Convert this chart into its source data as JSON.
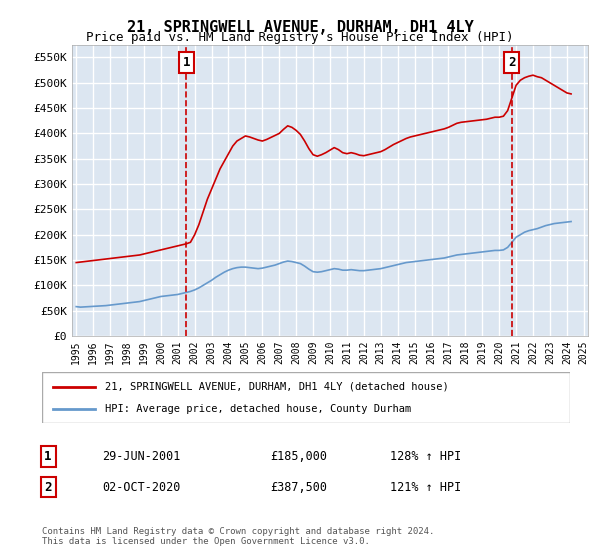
{
  "title": "21, SPRINGWELL AVENUE, DURHAM, DH1 4LY",
  "subtitle": "Price paid vs. HM Land Registry's House Price Index (HPI)",
  "ylim": [
    0,
    575000
  ],
  "yticks": [
    0,
    50000,
    100000,
    150000,
    200000,
    250000,
    300000,
    350000,
    400000,
    450000,
    500000,
    550000
  ],
  "ytick_labels": [
    "£0",
    "£50K",
    "£100K",
    "£150K",
    "£200K",
    "£250K",
    "£300K",
    "£350K",
    "£400K",
    "£450K",
    "£500K",
    "£550K"
  ],
  "xlabel": "",
  "background_color": "#dce6f1",
  "plot_bg": "#dce6f1",
  "grid_color": "#ffffff",
  "red_color": "#cc0000",
  "blue_color": "#6699cc",
  "legend_label_red": "21, SPRINGWELL AVENUE, DURHAM, DH1 4LY (detached house)",
  "legend_label_blue": "HPI: Average price, detached house, County Durham",
  "marker1_date_idx": 6.5,
  "marker1_label": "1",
  "marker1_date": "29-JUN-2001",
  "marker1_price": "£185,000",
  "marker1_hpi": "128% ↑ HPI",
  "marker2_date_idx": 25.5,
  "marker2_label": "2",
  "marker2_date": "02-OCT-2020",
  "marker2_price": "£387,500",
  "marker2_hpi": "121% ↑ HPI",
  "footer": "Contains HM Land Registry data © Crown copyright and database right 2024.\nThis data is licensed under the Open Government Licence v3.0.",
  "hpi_data": {
    "years": [
      1995.0,
      1995.25,
      1995.5,
      1995.75,
      1996.0,
      1996.25,
      1996.5,
      1996.75,
      1997.0,
      1997.25,
      1997.5,
      1997.75,
      1998.0,
      1998.25,
      1998.5,
      1998.75,
      1999.0,
      1999.25,
      1999.5,
      1999.75,
      2000.0,
      2000.25,
      2000.5,
      2000.75,
      2001.0,
      2001.25,
      2001.5,
      2001.75,
      2002.0,
      2002.25,
      2002.5,
      2002.75,
      2003.0,
      2003.25,
      2003.5,
      2003.75,
      2004.0,
      2004.25,
      2004.5,
      2004.75,
      2005.0,
      2005.25,
      2005.5,
      2005.75,
      2006.0,
      2006.25,
      2006.5,
      2006.75,
      2007.0,
      2007.25,
      2007.5,
      2007.75,
      2008.0,
      2008.25,
      2008.5,
      2008.75,
      2009.0,
      2009.25,
      2009.5,
      2009.75,
      2010.0,
      2010.25,
      2010.5,
      2010.75,
      2011.0,
      2011.25,
      2011.5,
      2011.75,
      2012.0,
      2012.25,
      2012.5,
      2012.75,
      2013.0,
      2013.25,
      2013.5,
      2013.75,
      2014.0,
      2014.25,
      2014.5,
      2014.75,
      2015.0,
      2015.25,
      2015.5,
      2015.75,
      2016.0,
      2016.25,
      2016.5,
      2016.75,
      2017.0,
      2017.25,
      2017.5,
      2017.75,
      2018.0,
      2018.25,
      2018.5,
      2018.75,
      2019.0,
      2019.25,
      2019.5,
      2019.75,
      2020.0,
      2020.25,
      2020.5,
      2020.75,
      2021.0,
      2021.25,
      2021.5,
      2021.75,
      2022.0,
      2022.25,
      2022.5,
      2022.75,
      2023.0,
      2023.25,
      2023.5,
      2023.75,
      2024.0,
      2024.25
    ],
    "blue_values": [
      58000,
      57000,
      57500,
      58000,
      58500,
      59000,
      59500,
      60000,
      61000,
      62000,
      63000,
      64000,
      65000,
      66000,
      67000,
      68000,
      70000,
      72000,
      74000,
      76000,
      78000,
      79000,
      80000,
      81000,
      82000,
      84000,
      86000,
      88000,
      91000,
      95000,
      100000,
      105000,
      110000,
      116000,
      121000,
      126000,
      130000,
      133000,
      135000,
      136000,
      136000,
      135000,
      134000,
      133000,
      134000,
      136000,
      138000,
      140000,
      143000,
      146000,
      148000,
      147000,
      145000,
      143000,
      138000,
      132000,
      127000,
      126000,
      127000,
      129000,
      131000,
      133000,
      132000,
      130000,
      130000,
      131000,
      130000,
      129000,
      129000,
      130000,
      131000,
      132000,
      133000,
      135000,
      137000,
      139000,
      141000,
      143000,
      145000,
      146000,
      147000,
      148000,
      149000,
      150000,
      151000,
      152000,
      153000,
      154000,
      156000,
      158000,
      160000,
      161000,
      162000,
      163000,
      164000,
      165000,
      166000,
      167000,
      168000,
      169000,
      169000,
      170000,
      175000,
      185000,
      195000,
      200000,
      205000,
      208000,
      210000,
      212000,
      215000,
      218000,
      220000,
      222000,
      223000,
      224000,
      225000,
      226000
    ],
    "red_values": [
      145000,
      146000,
      147000,
      148000,
      149000,
      150000,
      151000,
      152000,
      153000,
      154000,
      155000,
      156000,
      157000,
      158000,
      159000,
      160000,
      162000,
      164000,
      166000,
      168000,
      170000,
      172000,
      174000,
      176000,
      178000,
      180000,
      182000,
      185000,
      200000,
      220000,
      245000,
      270000,
      290000,
      310000,
      330000,
      345000,
      360000,
      375000,
      385000,
      390000,
      395000,
      393000,
      390000,
      387000,
      385000,
      388000,
      392000,
      396000,
      400000,
      408000,
      415000,
      412000,
      406000,
      398000,
      385000,
      370000,
      358000,
      355000,
      358000,
      362000,
      367000,
      372000,
      368000,
      362000,
      360000,
      362000,
      360000,
      357000,
      356000,
      358000,
      360000,
      362000,
      364000,
      368000,
      373000,
      378000,
      382000,
      386000,
      390000,
      393000,
      395000,
      397000,
      399000,
      401000,
      403000,
      405000,
      407000,
      409000,
      412000,
      416000,
      420000,
      422000,
      423000,
      424000,
      425000,
      426000,
      427000,
      428000,
      430000,
      432000,
      432000,
      434000,
      445000,
      470000,
      495000,
      505000,
      510000,
      513000,
      515000,
      512000,
      510000,
      505000,
      500000,
      495000,
      490000,
      485000,
      480000,
      478000
    ]
  },
  "sale1": {
    "year": 2001.5,
    "price": 185000
  },
  "sale2": {
    "year": 2020.75,
    "price": 387500
  }
}
